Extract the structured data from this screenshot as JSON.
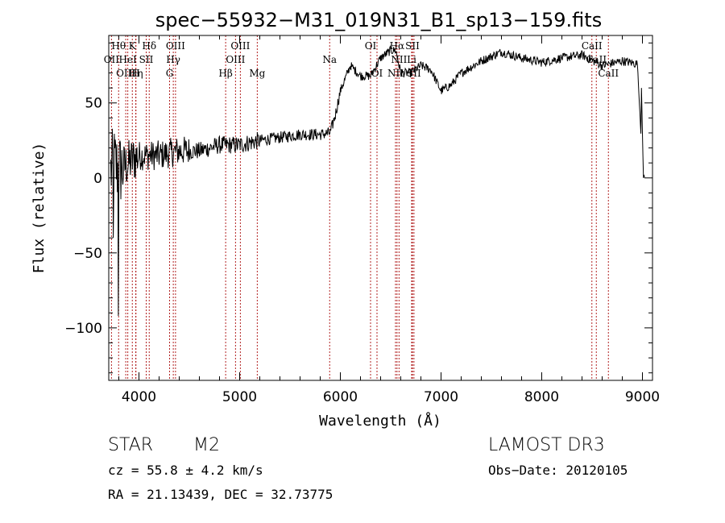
{
  "chart_data": {
    "type": "line",
    "title": "spec−55932−M31_019N31_B1_sp13−159.fits",
    "xlabel": "Wavelength (Å)",
    "ylabel": "Flux (relative)",
    "xlim": [
      3700,
      9100
    ],
    "ylim": [
      -135,
      95
    ],
    "x_ticks": [
      4000,
      5000,
      6000,
      7000,
      8000,
      9000
    ],
    "x_tick_labels": [
      "4000",
      "5000",
      "6000",
      "7000",
      "8000",
      "9000"
    ],
    "y_ticks": [
      -100,
      -50,
      0,
      50
    ],
    "y_tick_labels": [
      "−100",
      "−50",
      "0",
      "50"
    ],
    "spectrum_anchors": {
      "x": [
        3700,
        3750,
        3800,
        3900,
        4000,
        4200,
        4400,
        4600,
        4800,
        5000,
        5200,
        5400,
        5600,
        5800,
        5900,
        5950,
        6000,
        6100,
        6200,
        6300,
        6400,
        6500,
        6550,
        6600,
        6700,
        6800,
        6900,
        7000,
        7100,
        7200,
        7400,
        7600,
        7800,
        8000,
        8200,
        8400,
        8600,
        8800,
        8950,
        9000,
        9020
      ],
      "y": [
        0,
        10,
        5,
        10,
        15,
        15,
        18,
        18,
        22,
        22,
        25,
        27,
        29,
        29,
        30,
        42,
        58,
        75,
        68,
        68,
        80,
        85,
        85,
        70,
        70,
        75,
        72,
        58,
        62,
        70,
        78,
        84,
        80,
        77,
        80,
        82,
        75,
        78,
        76,
        10,
        0
      ]
    },
    "emission_lines": [
      {
        "name": "OII",
        "wavelength": 3727
      },
      {
        "name": "Hθ",
        "wavelength": 3798
      },
      {
        "name": "OIII",
        "wavelength": 3869
      },
      {
        "name": "HeI",
        "wavelength": 3889
      },
      {
        "name": "K",
        "wavelength": 3934
      },
      {
        "name": "H",
        "wavelength": 3968
      },
      {
        "name": "Hη",
        "wavelength": 3970
      },
      {
        "name": "SII",
        "wavelength": 4072
      },
      {
        "name": "Hδ",
        "wavelength": 4102
      },
      {
        "name": "G",
        "wavelength": 4304
      },
      {
        "name": "Hγ",
        "wavelength": 4341
      },
      {
        "name": "OIII",
        "wavelength": 4363
      },
      {
        "name": "Hβ",
        "wavelength": 4861
      },
      {
        "name": "OIII",
        "wavelength": 4959
      },
      {
        "name": "OIII",
        "wavelength": 5007
      },
      {
        "name": "Mg",
        "wavelength": 5175
      },
      {
        "name": "Na",
        "wavelength": 5894
      },
      {
        "name": "OI",
        "wavelength": 6300
      },
      {
        "name": "OI",
        "wavelength": 6364
      },
      {
        "name": "NII",
        "wavelength": 6548
      },
      {
        "name": "Hα",
        "wavelength": 6563
      },
      {
        "name": "NII",
        "wavelength": 6583
      },
      {
        "name": "Li",
        "wavelength": 6708
      },
      {
        "name": "SII",
        "wavelength": 6716
      },
      {
        "name": "SII",
        "wavelength": 6731
      },
      {
        "name": "CaII",
        "wavelength": 8498
      },
      {
        "name": "CaII",
        "wavelength": 8542
      },
      {
        "name": "CaII",
        "wavelength": 8662
      }
    ],
    "line_label_rows": [
      [
        {
          "text": "Hθ",
          "wavelength": 3798
        },
        {
          "text": "K",
          "wavelength": 3934
        },
        {
          "text": "Hδ",
          "wavelength": 4102
        },
        {
          "text": "OIII",
          "wavelength": 4363
        },
        {
          "text": "OIII",
          "wavelength": 5007
        },
        {
          "text": "OI",
          "wavelength": 6300
        },
        {
          "text": "Hα",
          "wavelength": 6563
        },
        {
          "text": "SII",
          "wavelength": 6716
        },
        {
          "text": "CaII",
          "wavelength": 8498
        }
      ],
      [
        {
          "text": "OII",
          "wavelength": 3727
        },
        {
          "text": "HeI",
          "wavelength": 3889
        },
        {
          "text": "SII",
          "wavelength": 4072
        },
        {
          "text": "Hγ",
          "wavelength": 4341
        },
        {
          "text": "OIII",
          "wavelength": 4959
        },
        {
          "text": "Na",
          "wavelength": 5894
        },
        {
          "text": "NII",
          "wavelength": 6583
        },
        {
          "text": "Li",
          "wavelength": 6708
        },
        {
          "text": "CaII",
          "wavelength": 8542
        }
      ],
      [
        {
          "text": "OIII",
          "wavelength": 3869
        },
        {
          "text": "Hη",
          "wavelength": 3970
        },
        {
          "text": "H",
          "wavelength": 3968
        },
        {
          "text": "G",
          "wavelength": 4304
        },
        {
          "text": "Hβ",
          "wavelength": 4861
        },
        {
          "text": "Mg",
          "wavelength": 5175
        },
        {
          "text": "OI",
          "wavelength": 6364
        },
        {
          "text": "NII",
          "wavelength": 6548
        },
        {
          "text": "SII",
          "wavelength": 6731
        },
        {
          "text": "CaII",
          "wavelength": 8662
        }
      ]
    ],
    "colors": {
      "spectrum": "#000000",
      "line_marker": "#b22222",
      "axes": "#000000"
    }
  },
  "info": {
    "class": "STAR",
    "subclass": "M2",
    "survey": "LAMOST DR3",
    "redshift": "cz = 55.8 ± 4.2 km/s",
    "obs_date": "Obs−Date: 20120105",
    "coords": "RA =  21.13439, DEC =  32.73775"
  }
}
